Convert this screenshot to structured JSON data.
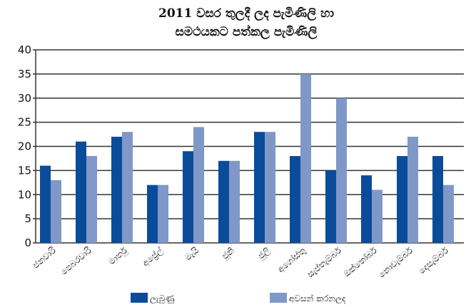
{
  "chart_data": {
    "type": "bar",
    "title": [
      "2011 වසර තුලදී ලද පැමිණිලි හා",
      "සමථයකට පත්කල පැමිණිලි"
    ],
    "categories": [
      "ජනවාරි",
      "පෙබරවාරි",
      "මාර්තු",
      "අප්‍රේල්",
      "මැයි",
      "ජූනි",
      "ජූලි",
      "අගෝස්තු",
      "සැප්තැම්බර්",
      "ඔක්තෝබර්",
      "නොවැම්බර්",
      "දෙසැම්බර්"
    ],
    "series": [
      {
        "name": "ලැබුණු",
        "color": "#0b4c9a",
        "values": [
          16,
          21,
          22,
          12,
          19,
          17,
          23,
          18,
          15,
          14,
          18,
          18
        ]
      },
      {
        "name": "අවසන් කරනලද",
        "color": "#7f98c8",
        "values": [
          13,
          18,
          23,
          12,
          24,
          17,
          23,
          35,
          30,
          11,
          22,
          12
        ]
      }
    ],
    "ylim": [
      0,
      40
    ],
    "yticks": [
      0,
      5,
      10,
      15,
      20,
      25,
      30,
      35,
      40
    ],
    "grid": true
  }
}
